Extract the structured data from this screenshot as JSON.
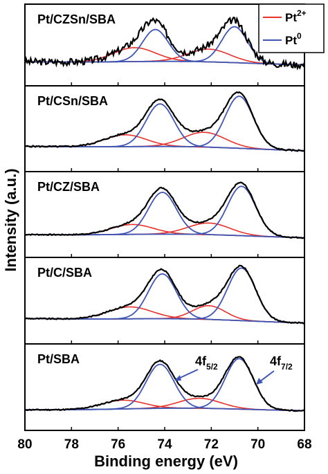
{
  "chart_data": {
    "type": "line",
    "xlabel": "Binding energy (eV)",
    "ylabel": "Intensity (a.u.)",
    "xlim": [
      80,
      68
    ],
    "x_reversed": true,
    "x_ticks": [
      80,
      78,
      76,
      74,
      72,
      70,
      68
    ],
    "x_tick_labels": [
      "80",
      "78",
      "76",
      "74",
      "72",
      "70",
      "68"
    ],
    "legend": {
      "placement": "top-right",
      "entries": [
        {
          "base": "Pt",
          "sup": "2+",
          "color": "#e8302a"
        },
        {
          "base": "Pt",
          "sup": "0",
          "color": "#3f55b5"
        }
      ]
    },
    "colors": {
      "total": "#000000",
      "pt2": "#e8302a",
      "pt0": "#3f55b5",
      "background": "#555555"
    },
    "annotations": [
      {
        "base": "4f",
        "sub": "5/2",
        "target_x": 74.0
      },
      {
        "base": "4f",
        "sub": "7/2",
        "target_x": 70.7
      }
    ],
    "panels": [
      {
        "label": "Pt/CZSn/SBA",
        "ymax": 1.05,
        "noise": 0.06,
        "seed": 3,
        "background": {
          "start": 0.08,
          "end": 0.02
        },
        "pt0": [
          {
            "center": 74.4,
            "height": 0.55,
            "sigma": 0.55
          },
          {
            "center": 71.0,
            "height": 0.62,
            "sigma": 0.55
          }
        ],
        "pt2": [
          {
            "center": 75.3,
            "height": 0.24,
            "sigma": 0.9
          },
          {
            "center": 72.1,
            "height": 0.22,
            "sigma": 0.9
          }
        ]
      },
      {
        "label": "Pt/CSn/SBA",
        "ymax": 1.1,
        "noise": 0.012,
        "seed": 5,
        "background": {
          "start": 0.1,
          "end": 0.02
        },
        "pt0": [
          {
            "center": 74.2,
            "height": 0.72,
            "sigma": 0.6
          },
          {
            "center": 70.8,
            "height": 0.88,
            "sigma": 0.6
          }
        ],
        "pt2": [
          {
            "center": 75.7,
            "height": 0.2,
            "sigma": 0.9
          },
          {
            "center": 72.3,
            "height": 0.25,
            "sigma": 0.9
          }
        ]
      },
      {
        "label": "Pt/CZ/SBA",
        "ymax": 1.12,
        "noise": 0.01,
        "seed": 7,
        "background": {
          "start": 0.06,
          "end": 0.0
        },
        "pt0": [
          {
            "center": 74.1,
            "height": 0.72,
            "sigma": 0.6
          },
          {
            "center": 70.7,
            "height": 0.85,
            "sigma": 0.6
          }
        ],
        "pt2": [
          {
            "center": 75.4,
            "height": 0.17,
            "sigma": 0.9
          },
          {
            "center": 72.1,
            "height": 0.2,
            "sigma": 0.9
          }
        ]
      },
      {
        "label": "Pt/C/SBA",
        "ymax": 1.1,
        "noise": 0.01,
        "seed": 9,
        "background": {
          "start": 0.1,
          "end": 0.02
        },
        "pt0": [
          {
            "center": 74.1,
            "height": 0.75,
            "sigma": 0.6
          },
          {
            "center": 70.7,
            "height": 0.88,
            "sigma": 0.6
          }
        ],
        "pt2": [
          {
            "center": 75.5,
            "height": 0.2,
            "sigma": 0.95
          },
          {
            "center": 72.1,
            "height": 0.23,
            "sigma": 0.7
          }
        ]
      },
      {
        "label": "Pt/SBA",
        "ymax": 1.12,
        "noise": 0.01,
        "seed": 11,
        "background": {
          "start": 0.02,
          "end": 0.0
        },
        "pt0": [
          {
            "center": 74.2,
            "height": 0.75,
            "sigma": 0.6
          },
          {
            "center": 70.8,
            "height": 0.86,
            "sigma": 0.6
          }
        ],
        "pt2": [
          {
            "center": 75.8,
            "height": 0.15,
            "sigma": 0.9
          },
          {
            "center": 72.5,
            "height": 0.17,
            "sigma": 0.9
          }
        ]
      }
    ]
  }
}
